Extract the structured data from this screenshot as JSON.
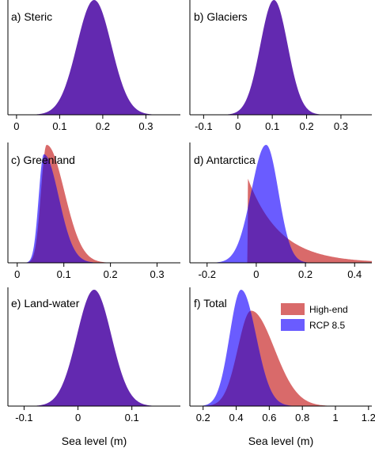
{
  "colors": {
    "high_end": "#d96a6a",
    "rcp85": "#6a5cff",
    "overlap": "#6329b0"
  },
  "legend": {
    "position": "inside panel f, upper right",
    "items": [
      {
        "label": "High-end",
        "color": "#d96a6a"
      },
      {
        "label": "RCP 8.5",
        "color": "#6a5cff"
      }
    ]
  },
  "xlabel": "Sea level (m)",
  "chart_data": [
    {
      "type": "area",
      "title": "a) Steric",
      "xlabel": "",
      "xlim": [
        -0.02,
        0.38
      ],
      "ticks": [
        0,
        0.1,
        0.2,
        0.3
      ],
      "tick_labels": [
        "0",
        "0.1",
        "0.2",
        "0.3"
      ],
      "series": [
        {
          "dist": "normal",
          "mode": 0.18,
          "sd": 0.04,
          "peak": 1.0,
          "style": "overlap"
        }
      ]
    },
    {
      "type": "area",
      "title": "b) Glaciers",
      "xlabel": "",
      "xlim": [
        -0.14,
        0.39
      ],
      "ticks": [
        -0.1,
        0,
        0.1,
        0.2,
        0.3
      ],
      "tick_labels": [
        "-0.1",
        "0",
        "0.1",
        "0.2",
        "0.3"
      ],
      "series": [
        {
          "dist": "normal",
          "mode": 0.105,
          "sd": 0.04,
          "peak": 1.0,
          "style": "overlap"
        }
      ]
    },
    {
      "type": "area",
      "title": "c) Greenland",
      "xlabel": "",
      "xlim": [
        -0.02,
        0.35
      ],
      "ticks": [
        0,
        0.1,
        0.2,
        0.3
      ],
      "tick_labels": [
        "0",
        "0.1",
        "0.2",
        "0.3"
      ],
      "series": [
        {
          "name": "High-end",
          "dist": "skew",
          "mode": 0.063,
          "sdl": 0.012,
          "sdr": 0.038,
          "peak": 1.0,
          "style": "high_end"
        },
        {
          "name": "RCP 8.5",
          "dist": "skew",
          "mode": 0.057,
          "sdl": 0.011,
          "sdr": 0.032,
          "peak": 0.92,
          "style": "rcp85"
        }
      ]
    },
    {
      "type": "area",
      "title": "d) Antarctica",
      "xlabel": "",
      "xlim": [
        -0.27,
        0.47
      ],
      "ticks": [
        -0.2,
        0,
        0.2,
        0.4
      ],
      "tick_labels": [
        "-0.2",
        "0",
        "0.2",
        "0.4"
      ],
      "series": [
        {
          "name": "High-end",
          "dist": "cut",
          "start": -0.035,
          "peak": 0.72,
          "scale": 0.13,
          "style": "high_end"
        },
        {
          "name": "RCP 8.5",
          "dist": "skew",
          "mode": 0.04,
          "sdl": 0.06,
          "sdr": 0.05,
          "peak": 1.0,
          "style": "rcp85"
        }
      ]
    },
    {
      "type": "area",
      "title": "e) Land-water",
      "xlabel": "Sea level (m)",
      "xlim": [
        -0.13,
        0.19
      ],
      "ticks": [
        -0.1,
        0,
        0.1
      ],
      "tick_labels": [
        "-0.1",
        "0",
        "0.1"
      ],
      "series": [
        {
          "dist": "normal",
          "mode": 0.03,
          "sd": 0.032,
          "peak": 1.0,
          "style": "overlap"
        }
      ]
    },
    {
      "type": "area",
      "title": "f) Total",
      "xlabel": "Sea level (m)",
      "xlim": [
        0.12,
        1.22
      ],
      "ticks": [
        0.2,
        0.4,
        0.6,
        0.8,
        1.0,
        1.2
      ],
      "tick_labels": [
        "0.2",
        "0.4",
        "0.6",
        "0.8",
        "1",
        "1.2"
      ],
      "series": [
        {
          "name": "High-end",
          "dist": "skew",
          "mode": 0.49,
          "sdl": 0.08,
          "sdr": 0.14,
          "peak": 0.82,
          "style": "high_end"
        },
        {
          "name": "RCP 8.5",
          "dist": "skew",
          "mode": 0.43,
          "sdl": 0.07,
          "sdr": 0.09,
          "peak": 1.0,
          "style": "rcp85"
        }
      ]
    }
  ]
}
